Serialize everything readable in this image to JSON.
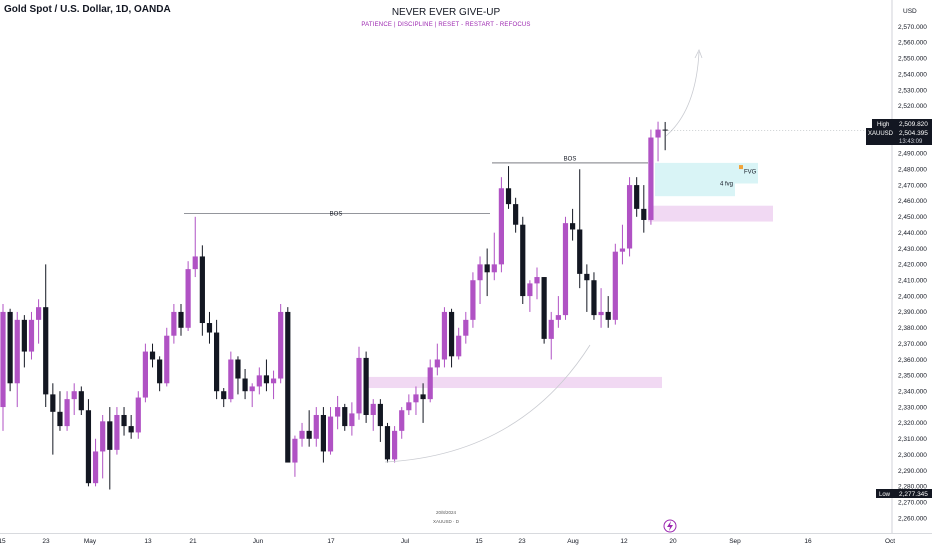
{
  "header": {
    "symbol_title": "Gold Spot / U.S. Dollar, 1D, OANDA",
    "center_title": "NEVER EVER GIVE-UP",
    "center_subtitle": "PATIENCE  |  DISCIPLINE  |  RESET - RESTART - REFOCUS"
  },
  "watermark": {
    "date": "20/8/2024",
    "symbol": "XAUUSD · D"
  },
  "price_axis": {
    "currency": "USD"
  },
  "price_tags": {
    "high_label": "High",
    "high_value": "2,509.820",
    "symbol_label": "XAUUSD",
    "last_value": "2,504.395",
    "countdown": "13:43:09",
    "low_label": "Low",
    "low_value": "2,277.345"
  },
  "annotations": {
    "bos_label_1": "BOS",
    "bos_label_2": "BOS",
    "fvg_label": "FVG",
    "fvg_count_label": "4 fvg"
  },
  "colors": {
    "bull": "#b052c4",
    "bear": "#131722",
    "zone_purple": "#f1d9f3",
    "zone_cyan": "#d9f4f6",
    "accent": "#9c27b0"
  },
  "chart_data": {
    "type": "candlestick",
    "title": "Gold Spot / U.S. Dollar, 1D, OANDA",
    "ylabel": "USD",
    "ylim": [
      2250,
      2585
    ],
    "yticks": [
      2260,
      2270,
      2280,
      2290,
      2300,
      2310,
      2320,
      2330,
      2340,
      2350,
      2360,
      2370,
      2380,
      2390,
      2400,
      2410,
      2420,
      2430,
      2440,
      2450,
      2460,
      2470,
      2480,
      2490,
      2500,
      2510,
      2520,
      2530,
      2540,
      2550,
      2560,
      2570
    ],
    "xticks": [
      "15",
      "23",
      "May",
      "13",
      "21",
      "Jun",
      "17",
      "Jul",
      "15",
      "23",
      "Aug",
      "12",
      "20",
      "Sep",
      "16",
      "Oct"
    ],
    "candles": [
      {
        "o": 2330,
        "h": 2395,
        "l": 2315,
        "c": 2390
      },
      {
        "o": 2390,
        "h": 2392,
        "l": 2340,
        "c": 2345
      },
      {
        "o": 2345,
        "h": 2390,
        "l": 2330,
        "c": 2385
      },
      {
        "o": 2385,
        "h": 2388,
        "l": 2355,
        "c": 2365
      },
      {
        "o": 2365,
        "h": 2390,
        "l": 2360,
        "c": 2385
      },
      {
        "o": 2385,
        "h": 2398,
        "l": 2370,
        "c": 2393
      },
      {
        "o": 2393,
        "h": 2420,
        "l": 2330,
        "c": 2338
      },
      {
        "o": 2338,
        "h": 2345,
        "l": 2300,
        "c": 2327
      },
      {
        "o": 2327,
        "h": 2340,
        "l": 2315,
        "c": 2318
      },
      {
        "o": 2318,
        "h": 2340,
        "l": 2315,
        "c": 2335
      },
      {
        "o": 2335,
        "h": 2345,
        "l": 2325,
        "c": 2340
      },
      {
        "o": 2340,
        "h": 2343,
        "l": 2325,
        "c": 2328
      },
      {
        "o": 2328,
        "h": 2335,
        "l": 2280,
        "c": 2282
      },
      {
        "o": 2282,
        "h": 2310,
        "l": 2280,
        "c": 2302
      },
      {
        "o": 2302,
        "h": 2325,
        "l": 2285,
        "c": 2321
      },
      {
        "o": 2321,
        "h": 2330,
        "l": 2278,
        "c": 2303
      },
      {
        "o": 2303,
        "h": 2330,
        "l": 2300,
        "c": 2325
      },
      {
        "o": 2325,
        "h": 2330,
        "l": 2312,
        "c": 2318
      },
      {
        "o": 2318,
        "h": 2325,
        "l": 2310,
        "c": 2314
      },
      {
        "o": 2314,
        "h": 2340,
        "l": 2310,
        "c": 2336
      },
      {
        "o": 2336,
        "h": 2370,
        "l": 2333,
        "c": 2365
      },
      {
        "o": 2365,
        "h": 2370,
        "l": 2355,
        "c": 2360
      },
      {
        "o": 2360,
        "h": 2362,
        "l": 2340,
        "c": 2345
      },
      {
        "o": 2345,
        "h": 2380,
        "l": 2343,
        "c": 2375
      },
      {
        "o": 2375,
        "h": 2395,
        "l": 2370,
        "c": 2390
      },
      {
        "o": 2390,
        "h": 2395,
        "l": 2375,
        "c": 2380
      },
      {
        "o": 2380,
        "h": 2422,
        "l": 2378,
        "c": 2417
      },
      {
        "o": 2417,
        "h": 2450,
        "l": 2412,
        "c": 2425
      },
      {
        "o": 2425,
        "h": 2432,
        "l": 2375,
        "c": 2383
      },
      {
        "o": 2383,
        "h": 2390,
        "l": 2370,
        "c": 2377
      },
      {
        "o": 2377,
        "h": 2385,
        "l": 2335,
        "c": 2340
      },
      {
        "o": 2340,
        "h": 2342,
        "l": 2330,
        "c": 2335
      },
      {
        "o": 2335,
        "h": 2365,
        "l": 2333,
        "c": 2360
      },
      {
        "o": 2360,
        "h": 2362,
        "l": 2338,
        "c": 2348
      },
      {
        "o": 2348,
        "h": 2354,
        "l": 2335,
        "c": 2340
      },
      {
        "o": 2340,
        "h": 2345,
        "l": 2330,
        "c": 2343
      },
      {
        "o": 2343,
        "h": 2355,
        "l": 2338,
        "c": 2350
      },
      {
        "o": 2350,
        "h": 2360,
        "l": 2340,
        "c": 2345
      },
      {
        "o": 2345,
        "h": 2353,
        "l": 2335,
        "c": 2348
      },
      {
        "o": 2348,
        "h": 2395,
        "l": 2345,
        "c": 2390
      },
      {
        "o": 2390,
        "h": 2393,
        "l": 2295,
        "c": 2295
      },
      {
        "o": 2295,
        "h": 2312,
        "l": 2286,
        "c": 2310
      },
      {
        "o": 2310,
        "h": 2320,
        "l": 2305,
        "c": 2315
      },
      {
        "o": 2315,
        "h": 2328,
        "l": 2305,
        "c": 2310
      },
      {
        "o": 2310,
        "h": 2330,
        "l": 2305,
        "c": 2325
      },
      {
        "o": 2325,
        "h": 2330,
        "l": 2295,
        "c": 2302
      },
      {
        "o": 2302,
        "h": 2330,
        "l": 2300,
        "c": 2324
      },
      {
        "o": 2324,
        "h": 2337,
        "l": 2316,
        "c": 2330
      },
      {
        "o": 2330,
        "h": 2332,
        "l": 2315,
        "c": 2318
      },
      {
        "o": 2318,
        "h": 2333,
        "l": 2312,
        "c": 2326
      },
      {
        "o": 2326,
        "h": 2368,
        "l": 2322,
        "c": 2361
      },
      {
        "o": 2361,
        "h": 2365,
        "l": 2320,
        "c": 2325
      },
      {
        "o": 2325,
        "h": 2335,
        "l": 2315,
        "c": 2332
      },
      {
        "o": 2332,
        "h": 2335,
        "l": 2308,
        "c": 2318
      },
      {
        "o": 2318,
        "h": 2320,
        "l": 2295,
        "c": 2297
      },
      {
        "o": 2297,
        "h": 2318,
        "l": 2295,
        "c": 2315
      },
      {
        "o": 2315,
        "h": 2330,
        "l": 2310,
        "c": 2328
      },
      {
        "o": 2328,
        "h": 2338,
        "l": 2325,
        "c": 2333
      },
      {
        "o": 2333,
        "h": 2343,
        "l": 2325,
        "c": 2338
      },
      {
        "o": 2338,
        "h": 2345,
        "l": 2320,
        "c": 2335
      },
      {
        "o": 2335,
        "h": 2360,
        "l": 2333,
        "c": 2355
      },
      {
        "o": 2355,
        "h": 2370,
        "l": 2350,
        "c": 2360
      },
      {
        "o": 2360,
        "h": 2393,
        "l": 2355,
        "c": 2390
      },
      {
        "o": 2390,
        "h": 2392,
        "l": 2355,
        "c": 2362
      },
      {
        "o": 2362,
        "h": 2380,
        "l": 2360,
        "c": 2375
      },
      {
        "o": 2375,
        "h": 2390,
        "l": 2370,
        "c": 2385
      },
      {
        "o": 2385,
        "h": 2415,
        "l": 2380,
        "c": 2410
      },
      {
        "o": 2410,
        "h": 2425,
        "l": 2395,
        "c": 2420
      },
      {
        "o": 2420,
        "h": 2430,
        "l": 2400,
        "c": 2415
      },
      {
        "o": 2415,
        "h": 2440,
        "l": 2410,
        "c": 2420
      },
      {
        "o": 2420,
        "h": 2475,
        "l": 2415,
        "c": 2468
      },
      {
        "o": 2468,
        "h": 2482,
        "l": 2455,
        "c": 2458
      },
      {
        "o": 2458,
        "h": 2462,
        "l": 2440,
        "c": 2445
      },
      {
        "o": 2445,
        "h": 2450,
        "l": 2395,
        "c": 2400
      },
      {
        "o": 2400,
        "h": 2410,
        "l": 2390,
        "c": 2408
      },
      {
        "o": 2408,
        "h": 2418,
        "l": 2398,
        "c": 2412
      },
      {
        "o": 2412,
        "h": 2412,
        "l": 2370,
        "c": 2373
      },
      {
        "o": 2373,
        "h": 2390,
        "l": 2360,
        "c": 2385
      },
      {
        "o": 2385,
        "h": 2400,
        "l": 2380,
        "c": 2388
      },
      {
        "o": 2388,
        "h": 2450,
        "l": 2385,
        "c": 2446
      },
      {
        "o": 2446,
        "h": 2455,
        "l": 2435,
        "c": 2442
      },
      {
        "o": 2442,
        "h": 2480,
        "l": 2405,
        "c": 2414
      },
      {
        "o": 2414,
        "h": 2420,
        "l": 2390,
        "c": 2410
      },
      {
        "o": 2410,
        "h": 2415,
        "l": 2385,
        "c": 2388
      },
      {
        "o": 2388,
        "h": 2405,
        "l": 2380,
        "c": 2390
      },
      {
        "o": 2390,
        "h": 2400,
        "l": 2380,
        "c": 2385
      },
      {
        "o": 2385,
        "h": 2433,
        "l": 2382,
        "c": 2428
      },
      {
        "o": 2428,
        "h": 2445,
        "l": 2420,
        "c": 2430
      },
      {
        "o": 2430,
        "h": 2475,
        "l": 2425,
        "c": 2470
      },
      {
        "o": 2470,
        "h": 2475,
        "l": 2450,
        "c": 2455
      },
      {
        "o": 2455,
        "h": 2470,
        "l": 2440,
        "c": 2448
      },
      {
        "o": 2448,
        "h": 2505,
        "l": 2445,
        "c": 2500
      },
      {
        "o": 2500,
        "h": 2510,
        "l": 2485,
        "c": 2505
      },
      {
        "o": 2505,
        "h": 2509.82,
        "l": 2492,
        "c": 2504.395
      }
    ]
  }
}
